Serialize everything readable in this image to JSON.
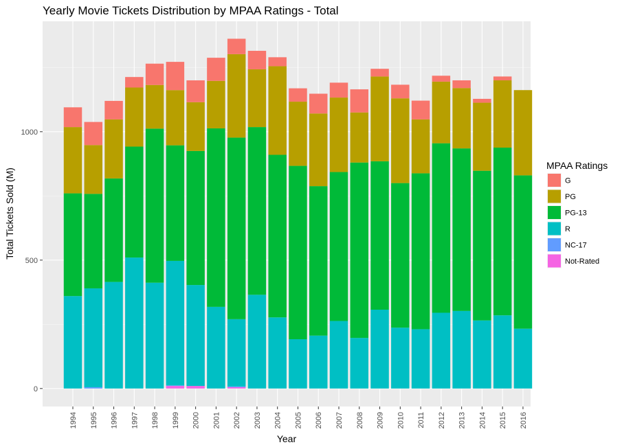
{
  "chart_data": {
    "type": "bar",
    "stacked": true,
    "title": "Yearly Movie Tickets Distribution by MPAA Ratings - Total",
    "xlabel": "Year",
    "ylabel": "Total Tickets Sold (M)",
    "ylim": [
      -70,
      1430
    ],
    "y_ticks": [
      0,
      500,
      1000
    ],
    "grid": true,
    "legend_position": "right",
    "legend_title": "MPAA Ratings",
    "categories": [
      "1994",
      "1995",
      "1996",
      "1997",
      "1998",
      "1999",
      "2000",
      "2001",
      "2002",
      "2003",
      "2004",
      "2005",
      "2006",
      "2007",
      "2008",
      "2009",
      "2010",
      "2011",
      "2012",
      "2013",
      "2014",
      "2015",
      "2016"
    ],
    "series": [
      {
        "name": "Not-Rated",
        "color": "#F564E3",
        "values": [
          0,
          0,
          0,
          0,
          0,
          10,
          10,
          0,
          5,
          0,
          0,
          0,
          0,
          0,
          0,
          0,
          0,
          0,
          0,
          0,
          0,
          0,
          0
        ]
      },
      {
        "name": "NC-17",
        "color": "#619CFF",
        "values": [
          0,
          5,
          0,
          0,
          0,
          2,
          0,
          0,
          3,
          0,
          0,
          0,
          0,
          0,
          0,
          0,
          0,
          0,
          0,
          0,
          0,
          0,
          0
        ]
      },
      {
        "name": "R",
        "color": "#00BFC4",
        "values": [
          360,
          385,
          415,
          510,
          412,
          485,
          393,
          318,
          262,
          365,
          277,
          192,
          206,
          263,
          197,
          307,
          237,
          231,
          295,
          302,
          265,
          285,
          233
        ]
      },
      {
        "name": "PG-13",
        "color": "#00BA38",
        "values": [
          400,
          368,
          403,
          432,
          600,
          450,
          522,
          695,
          707,
          653,
          633,
          675,
          582,
          580,
          683,
          578,
          563,
          607,
          660,
          633,
          583,
          653,
          597
        ]
      },
      {
        "name": "PG",
        "color": "#B79F00",
        "values": [
          258,
          190,
          230,
          230,
          170,
          215,
          190,
          185,
          325,
          225,
          345,
          250,
          283,
          290,
          195,
          330,
          330,
          210,
          240,
          235,
          265,
          262,
          332
        ]
      },
      {
        "name": "G",
        "color": "#F8766D",
        "values": [
          77,
          90,
          72,
          41,
          83,
          110,
          85,
          90,
          60,
          72,
          35,
          52,
          77,
          58,
          90,
          30,
          53,
          73,
          23,
          30,
          15,
          15,
          0
        ]
      }
    ]
  }
}
